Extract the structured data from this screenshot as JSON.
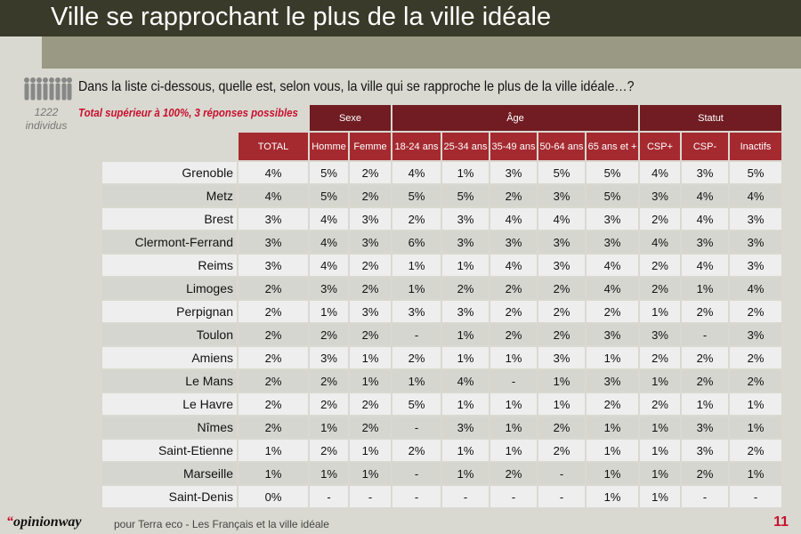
{
  "header": {
    "title": "Ville se rapprochant le plus de la ville idéale"
  },
  "question": "Dans la liste ci-dessous, quelle est, selon vous, la ville qui se rapproche le plus de la ville idéale…?",
  "sample": {
    "count": "1222",
    "unit": "individus"
  },
  "note": "Total supérieur à 100%, 3 réponses possibles",
  "table": {
    "groups": {
      "sexe": "Sexe",
      "age": "Âge",
      "statut": "Statut"
    },
    "columns": [
      "TOTAL",
      "Homme",
      "Femme",
      "18-24 ans",
      "25-34 ans",
      "35-49 ans",
      "50-64 ans",
      "65 ans et +",
      "CSP+",
      "CSP-",
      "Inactifs"
    ],
    "rows": [
      {
        "city": "Grenoble",
        "values": [
          "4%",
          "5%",
          "2%",
          "4%",
          "1%",
          "3%",
          "5%",
          "5%",
          "4%",
          "3%",
          "5%"
        ]
      },
      {
        "city": "Metz",
        "values": [
          "4%",
          "5%",
          "2%",
          "5%",
          "5%",
          "2%",
          "3%",
          "5%",
          "3%",
          "4%",
          "4%"
        ]
      },
      {
        "city": "Brest",
        "values": [
          "3%",
          "4%",
          "3%",
          "2%",
          "3%",
          "4%",
          "4%",
          "3%",
          "2%",
          "4%",
          "3%"
        ]
      },
      {
        "city": "Clermont-Ferrand",
        "values": [
          "3%",
          "4%",
          "3%",
          "6%",
          "3%",
          "3%",
          "3%",
          "3%",
          "4%",
          "3%",
          "3%"
        ]
      },
      {
        "city": "Reims",
        "values": [
          "3%",
          "4%",
          "2%",
          "1%",
          "1%",
          "4%",
          "3%",
          "4%",
          "2%",
          "4%",
          "3%"
        ]
      },
      {
        "city": "Limoges",
        "values": [
          "2%",
          "3%",
          "2%",
          "1%",
          "2%",
          "2%",
          "2%",
          "4%",
          "2%",
          "1%",
          "4%"
        ]
      },
      {
        "city": "Perpignan",
        "values": [
          "2%",
          "1%",
          "3%",
          "3%",
          "3%",
          "2%",
          "2%",
          "2%",
          "1%",
          "2%",
          "2%"
        ]
      },
      {
        "city": "Toulon",
        "values": [
          "2%",
          "2%",
          "2%",
          "-",
          "1%",
          "2%",
          "2%",
          "3%",
          "3%",
          "-",
          "3%"
        ]
      },
      {
        "city": "Amiens",
        "values": [
          "2%",
          "3%",
          "1%",
          "2%",
          "1%",
          "1%",
          "3%",
          "1%",
          "2%",
          "2%",
          "2%"
        ]
      },
      {
        "city": "Le Mans",
        "values": [
          "2%",
          "2%",
          "1%",
          "1%",
          "4%",
          "-",
          "1%",
          "3%",
          "1%",
          "2%",
          "2%"
        ]
      },
      {
        "city": "Le Havre",
        "values": [
          "2%",
          "2%",
          "2%",
          "5%",
          "1%",
          "1%",
          "1%",
          "2%",
          "2%",
          "1%",
          "1%"
        ]
      },
      {
        "city": "Nîmes",
        "values": [
          "2%",
          "1%",
          "2%",
          "-",
          "3%",
          "1%",
          "2%",
          "1%",
          "1%",
          "3%",
          "1%"
        ]
      },
      {
        "city": "Saint-Etienne",
        "values": [
          "1%",
          "2%",
          "1%",
          "2%",
          "1%",
          "1%",
          "2%",
          "1%",
          "1%",
          "3%",
          "2%"
        ]
      },
      {
        "city": "Marseille",
        "values": [
          "1%",
          "1%",
          "1%",
          "-",
          "1%",
          "2%",
          "-",
          "1%",
          "1%",
          "2%",
          "1%"
        ]
      },
      {
        "city": "Saint-Denis",
        "values": [
          "0%",
          "-",
          "-",
          "-",
          "-",
          "-",
          "-",
          "1%",
          "1%",
          "-",
          "-"
        ]
      }
    ]
  },
  "footer": {
    "logo_mark": "“",
    "logo_text": "opinionway",
    "source": "pour Terra eco - Les Français et la ville idéale",
    "page": "11"
  },
  "colors": {
    "group_header": "#701c22",
    "column_header": "#a52a30",
    "accent": "#c8102e"
  }
}
